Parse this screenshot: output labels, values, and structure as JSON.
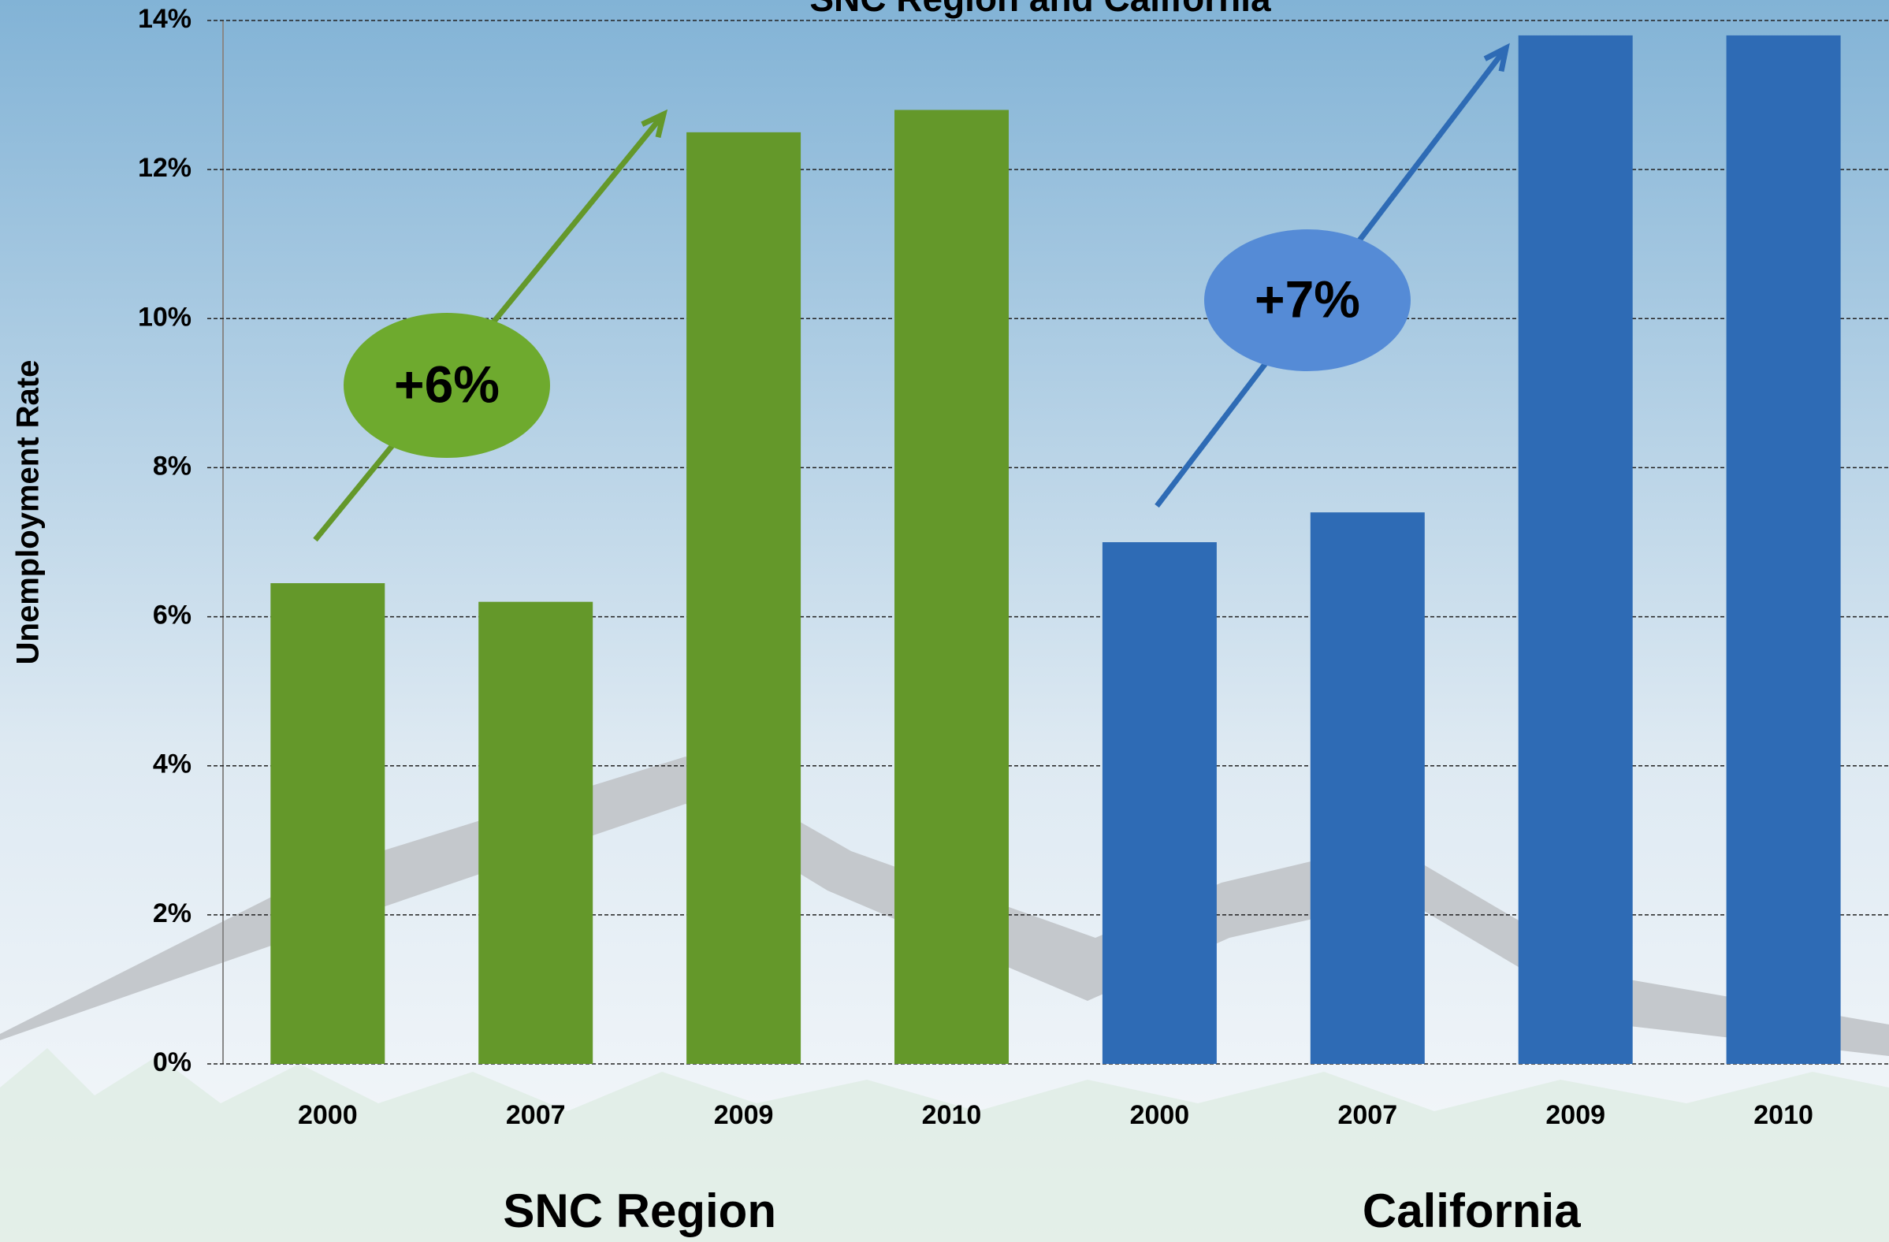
{
  "chart_data": {
    "type": "bar",
    "title": "SNC Region and California",
    "y_label": "Unemployment Rate",
    "categories": [
      "2000",
      "2007",
      "2009",
      "2010"
    ],
    "series": [
      {
        "name": "SNC Region",
        "color": "#64982a",
        "values": [
          6.45,
          6.2,
          12.5,
          12.8
        ]
      },
      {
        "name": "California",
        "color": "#2e6bb5",
        "values": [
          7.0,
          7.4,
          13.8,
          13.8
        ]
      }
    ],
    "annotations": [
      "+6%",
      "+7%"
    ],
    "ylim": [
      0,
      14
    ],
    "yticks": [
      {
        "value": 0,
        "label": "0%"
      },
      {
        "value": 2,
        "label": "2%"
      },
      {
        "value": 4,
        "label": "4%"
      },
      {
        "value": 6,
        "label": "6%"
      },
      {
        "value": 8,
        "label": "8%"
      },
      {
        "value": 10,
        "label": "10%"
      },
      {
        "value": 12,
        "label": "12%"
      },
      {
        "value": 14,
        "label": "14%"
      }
    ],
    "grid": true
  }
}
